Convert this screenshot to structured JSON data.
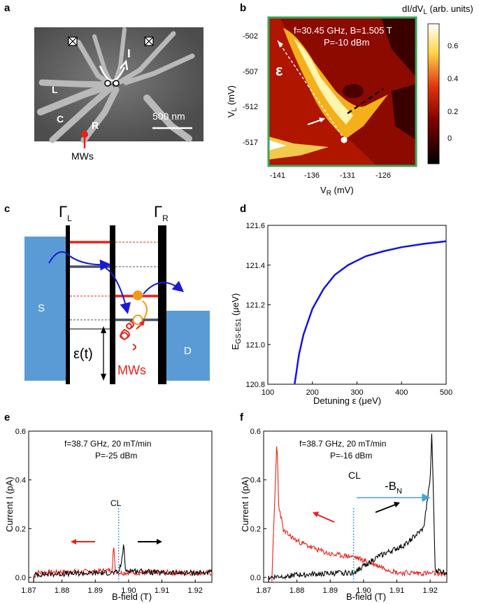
{
  "panels": {
    "a": {
      "label": "a",
      "leads": [
        "L",
        "C",
        "R"
      ],
      "current_label": "I",
      "scale_bar": "500 nm",
      "microwave_label": "MWs"
    },
    "b": {
      "label": "b",
      "annotation_line1": "f=30.45 GHz, B=1.505 T",
      "annotation_line2": "P=-10 dBm",
      "epsilon": "ε",
      "colorbar_title": "dI/dV",
      "colorbar_title_sub": "L",
      "colorbar_title_unit": " (arb. units)",
      "colorbar_ticks": [
        "0.6",
        "0.4",
        "0.2",
        "0"
      ],
      "ylabel": "V",
      "ylabel_sub": "L",
      "ylabel_unit": " (mV)",
      "yticks": [
        "-502",
        "-507",
        "-512",
        "-517"
      ],
      "xlabel": "V",
      "xlabel_sub": "R",
      "xlabel_unit": " (mV)",
      "xticks": [
        "-141",
        "-136",
        "-131",
        "-126"
      ]
    },
    "c": {
      "label": "c",
      "gamma_left": "Γ",
      "gamma_left_sub": "L",
      "gamma_right": "Γ",
      "gamma_right_sub": "R",
      "source": "S",
      "drain": "D",
      "detuning": "ε(t)",
      "microwaves": "MWs",
      "colors": {
        "lead": "#5b9bd5",
        "level_high": "#e8211c",
        "level_low": "#44546a",
        "electron": "#f29a16"
      }
    },
    "e": {
      "label": "e",
      "annotation_line1": "f=38.7 GHz, 20 mT/min",
      "annotation_line2": "P=-25 dBm",
      "cl": "CL",
      "ylabel": "Current I (pA)",
      "xlabel": "B-field (T)",
      "yticks": [
        "0.6",
        "0.4",
        "0.2",
        "0.0"
      ],
      "xticks": [
        "1.87",
        "1.88",
        "1.89",
        "1.90",
        "1.91",
        "1.92"
      ]
    },
    "f": {
      "label": "f",
      "annotation_line1": "f=38.7 GHz, 20 mT/min",
      "annotation_line2": "P=-16 dBm",
      "cl": "CL",
      "bn": "-B",
      "bn_sub": "N",
      "ylabel": "Current I (pA)",
      "xlabel": "B-field (T)",
      "yticks": [
        "0.6",
        "0.4",
        "0.2",
        "0.0"
      ],
      "xticks": [
        "1.87",
        "1.88",
        "1.89",
        "1.90",
        "1.91",
        "1.92"
      ]
    }
  },
  "chart_data": [
    {
      "panel": "d",
      "label": "d",
      "type": "line",
      "title": "",
      "xlabel": "Detuning ε (μeV)",
      "ylabel": "E",
      "ylabel_sub": "GS-ES1",
      "ylabel_unit": " (μeV)",
      "xlim": [
        100,
        500
      ],
      "ylim": [
        120.8,
        121.6
      ],
      "xticks": [
        "100",
        "200",
        "300",
        "400",
        "500"
      ],
      "yticks": [
        "121.6",
        "121.4",
        "121.2",
        "121.0",
        "120.8"
      ],
      "series": [
        {
          "name": "E_GS-ES1",
          "color": "#1414e0",
          "x": [
            160,
            170,
            180,
            200,
            225,
            250,
            280,
            320,
            360,
            400,
            450,
            500
          ],
          "y": [
            120.8,
            120.95,
            121.05,
            121.18,
            121.28,
            121.35,
            121.4,
            121.445,
            121.47,
            121.49,
            121.507,
            121.52
          ]
        }
      ]
    },
    {
      "panel": "e",
      "type": "line",
      "xlim": [
        1.87,
        1.925
      ],
      "ylim": [
        -0.02,
        0.6
      ],
      "cl_position": 1.897,
      "series": [
        {
          "name": "sweep down",
          "color": "#e8211c",
          "x": [
            1.8715,
            1.8725,
            1.88,
            1.89,
            1.895,
            1.8955,
            1.896,
            1.897,
            1.91,
            1.925
          ],
          "y": [
            0.0,
            0.02,
            0.022,
            0.024,
            0.03,
            0.13,
            0.03,
            0.02,
            0.02,
            0.018
          ]
        },
        {
          "name": "sweep up",
          "color": "#000000",
          "x": [
            1.8715,
            1.872,
            1.88,
            1.897,
            1.898,
            1.8985,
            1.899,
            1.91,
            1.925
          ],
          "y": [
            0.0,
            0.012,
            0.015,
            0.02,
            0.07,
            0.145,
            0.03,
            0.018,
            0.02
          ]
        }
      ]
    },
    {
      "panel": "f",
      "type": "line",
      "xlim": [
        1.87,
        1.925
      ],
      "ylim": [
        -0.02,
        0.6
      ],
      "cl_position": 1.897,
      "series": [
        {
          "name": "sweep down",
          "color": "#e8211c",
          "x": [
            1.8725,
            1.874,
            1.8745,
            1.876,
            1.88,
            1.885,
            1.89,
            1.897,
            1.91,
            1.925
          ],
          "y": [
            0.0,
            0.57,
            0.3,
            0.19,
            0.15,
            0.12,
            0.095,
            0.085,
            0.02,
            0.015
          ]
        },
        {
          "name": "sweep up",
          "color": "#000000",
          "x": [
            1.8715,
            1.88,
            1.897,
            1.905,
            1.912,
            1.918,
            1.92,
            1.9205,
            1.9215,
            1.925
          ],
          "y": [
            0.0,
            0.01,
            0.02,
            0.09,
            0.13,
            0.2,
            0.4,
            0.6,
            0.03,
            0.02
          ]
        }
      ]
    }
  ]
}
